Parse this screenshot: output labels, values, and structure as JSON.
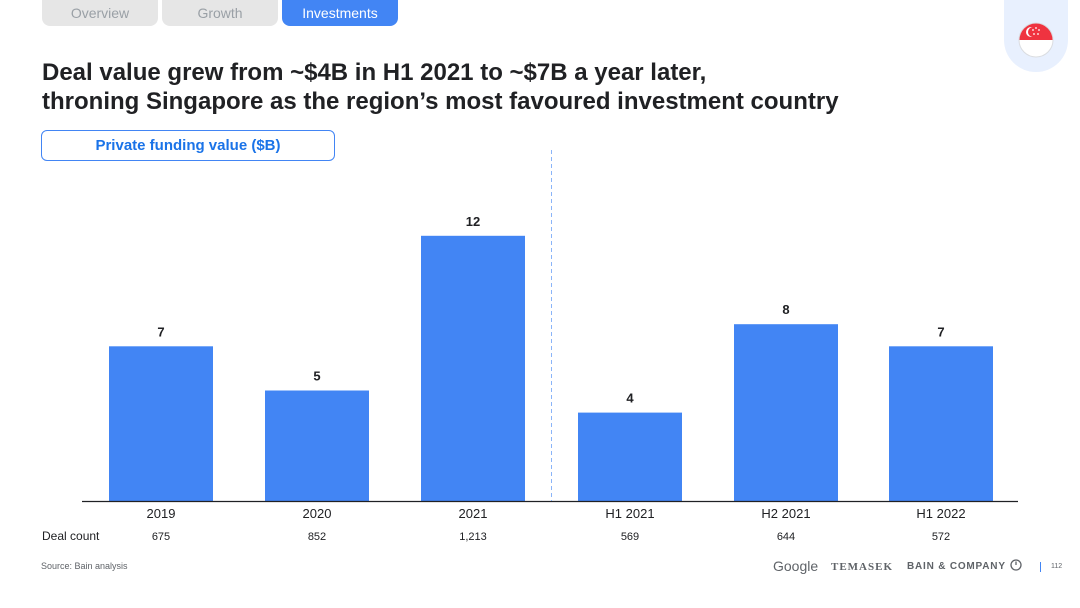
{
  "tabs": [
    {
      "label": "Overview",
      "active": false
    },
    {
      "label": "Growth",
      "active": false
    },
    {
      "label": "Investments",
      "active": true
    }
  ],
  "flag_icon": "singapore-flag-icon",
  "title_lines": [
    "Deal value grew from ~$4B in H1 2021 to ~$7B a year later,",
    "throning Singapore as the region’s most favoured investment country"
  ],
  "chart_label": "Private funding value ($B)",
  "colors": {
    "bar": "#4285f4",
    "accent": "#1a73e8",
    "axis": "#202124",
    "divider": "#8ab4f8"
  },
  "chart_data": {
    "type": "bar",
    "title": "",
    "categories": [
      "2019",
      "2020",
      "2021",
      "H1 2021",
      "H2 2021",
      "H1 2022"
    ],
    "values": [
      7,
      5,
      12,
      4,
      8,
      7
    ],
    "ylabel": "",
    "ylim": [
      0,
      14
    ],
    "grid": false,
    "divider_after_index": 2,
    "deal_count_label": "Deal count",
    "deal_counts": [
      "675",
      "852",
      "1,213",
      "569",
      "644",
      "572"
    ]
  },
  "footer": {
    "source": "Source: Bain analysis",
    "logos": [
      "Google",
      "TEMASEK",
      "BAIN & COMPANY"
    ],
    "page_number": "112"
  }
}
